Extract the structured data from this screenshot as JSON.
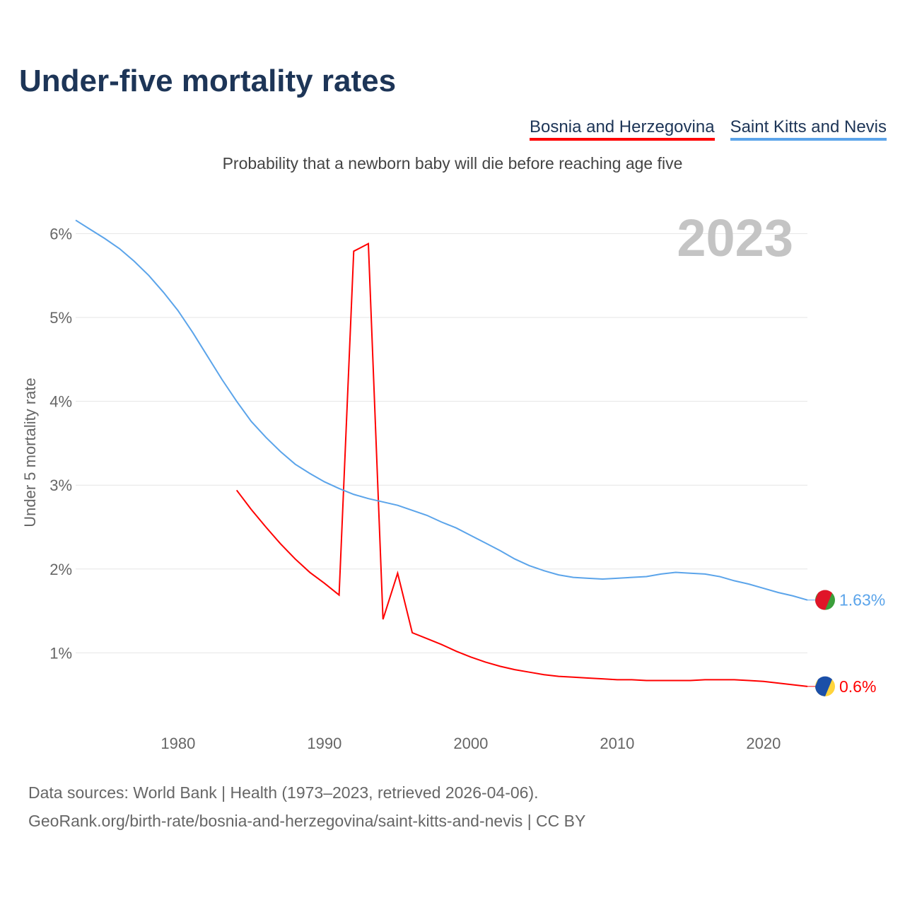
{
  "title": "Under-five mortality rates",
  "subtitle": "Probability that a newborn baby will die before reaching age five",
  "footer": {
    "line1": "Data sources: World Bank | Health (1973–2023, retrieved 2026-04-06).",
    "line2": "GeoRank.org/birth-rate/bosnia-and-herzegovina/saint-kitts-and-nevis | CC BY"
  },
  "chart_data": {
    "type": "line",
    "title": "Under-five mortality rates",
    "ylabel": "Under 5 mortality rate",
    "xlim": [
      1973,
      2023
    ],
    "ylim": [
      0,
      6.2
    ],
    "xticks": [
      1980,
      1990,
      2000,
      2010,
      2020
    ],
    "yticks": [
      1,
      2,
      3,
      4,
      5,
      6
    ],
    "ytick_labels": [
      "1%",
      "2%",
      "3%",
      "4%",
      "5%",
      "6%"
    ],
    "year_label": "2023",
    "grid": true,
    "legend_position": "top-right",
    "series": [
      {
        "name": "Bosnia and Herzegovina",
        "color": "#ff0000",
        "end_label": "0.6%",
        "start": 1984,
        "values": [
          2.94,
          2.71,
          2.5,
          2.3,
          2.12,
          1.96,
          1.83,
          1.69,
          5.79,
          5.88,
          1.4,
          1.95,
          1.24,
          1.17,
          1.1,
          1.02,
          0.95,
          0.89,
          0.84,
          0.8,
          0.77,
          0.74,
          0.72,
          0.71,
          0.7,
          0.69,
          0.68,
          0.68,
          0.67,
          0.67,
          0.67,
          0.67,
          0.68,
          0.68,
          0.68,
          0.67,
          0.66,
          0.64,
          0.62,
          0.6
        ]
      },
      {
        "name": "Saint Kitts and Nevis",
        "color": "#5ba4ea",
        "end_label": "1.63%",
        "start": 1973,
        "values": [
          6.16,
          6.05,
          5.94,
          5.82,
          5.67,
          5.5,
          5.3,
          5.08,
          4.82,
          4.54,
          4.26,
          4.0,
          3.76,
          3.57,
          3.4,
          3.25,
          3.14,
          3.04,
          2.96,
          2.89,
          2.84,
          2.8,
          2.76,
          2.7,
          2.64,
          2.56,
          2.49,
          2.4,
          2.31,
          2.22,
          2.12,
          2.04,
          1.98,
          1.93,
          1.9,
          1.89,
          1.88,
          1.89,
          1.9,
          1.91,
          1.94,
          1.96,
          1.95,
          1.94,
          1.91,
          1.86,
          1.82,
          1.77,
          1.72,
          1.68,
          1.63
        ]
      }
    ]
  }
}
